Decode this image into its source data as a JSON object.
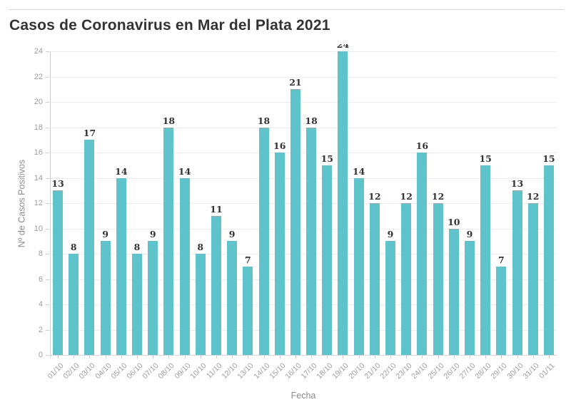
{
  "chart_data": {
    "type": "bar",
    "title": "Casos de Coronavirus en Mar del Plata 2021",
    "xlabel": "Fecha",
    "ylabel": "Nº de Casos Positivos",
    "categories": [
      "01/10",
      "02/10",
      "03/10",
      "04/10",
      "05/10",
      "06/10",
      "07/10",
      "08/10",
      "09/10",
      "10/10",
      "11/10",
      "12/10",
      "13/10",
      "14/10",
      "15/10",
      "16/10",
      "17/10",
      "18/10",
      "19/10",
      "20/10",
      "21/10",
      "22/10",
      "23/10",
      "24/10",
      "25/10",
      "26/10",
      "27/10",
      "28/10",
      "29/10",
      "30/10",
      "31/10",
      "01/11"
    ],
    "values": [
      13,
      8,
      17,
      9,
      14,
      8,
      9,
      18,
      14,
      8,
      11,
      9,
      7,
      18,
      16,
      21,
      18,
      15,
      24,
      14,
      12,
      9,
      12,
      16,
      12,
      10,
      9,
      15,
      7,
      13,
      12,
      15
    ],
    "value_labels": true,
    "ylim": [
      0,
      24
    ],
    "yticks": [
      0,
      2,
      4,
      6,
      8,
      10,
      12,
      14,
      16,
      18,
      20,
      22,
      24
    ],
    "grid": true,
    "legend": "none",
    "colors": {
      "bar": "#5ec3ca",
      "title_text": "#333333",
      "tick_text": "#9e9e9e",
      "axis_title_text": "#8c8c8c",
      "gridline": "#ececec",
      "axis_line": "#cfcfcf"
    }
  }
}
